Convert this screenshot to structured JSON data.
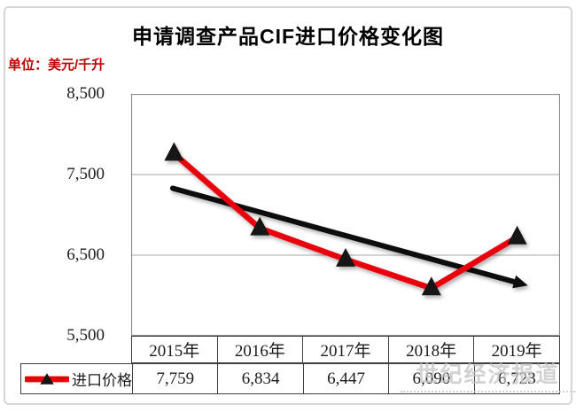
{
  "title": "申请调查产品CIF进口价格变化图",
  "unit_label": "单位：美元/千升",
  "watermark": "世纪经济报道",
  "legend": {
    "label": "进口价格"
  },
  "table": {
    "row_label": "进口价格",
    "columns": [
      "2015年",
      "2016年",
      "2017年",
      "2018年",
      "2019年"
    ],
    "values": [
      "7,759",
      "6,834",
      "6,447",
      "6,090",
      "6,723"
    ]
  },
  "chart_data": {
    "type": "line",
    "title": "申请调查产品CIF进口价格变化图",
    "ylabel": "美元/千升",
    "categories": [
      "2015年",
      "2016年",
      "2017年",
      "2018年",
      "2019年"
    ],
    "series": [
      {
        "name": "进口价格",
        "values": [
          7759,
          6834,
          6447,
          6090,
          6723
        ],
        "marker": "triangle"
      }
    ],
    "trend_arrow": {
      "x1_frac": 0.097,
      "y1_value": 7330,
      "x2_frac": 0.893,
      "y2_value": 6170
    },
    "ylim": [
      5500,
      8500
    ],
    "y_ticks": [
      "8,500",
      "7,500",
      "6,500",
      "5,500"
    ],
    "grid": true,
    "legend_position": "bottom-table"
  },
  "colors": {
    "series": "#e8000b",
    "marker": "#151515",
    "trend": "#0d0d0d",
    "grid": "#a6a6a6",
    "plot_border": "#8a8a8a",
    "table_border": "#3f3f3f",
    "unit": "#c00000",
    "watermark": "#c4c4c4",
    "frame": "#d6d6d6"
  }
}
